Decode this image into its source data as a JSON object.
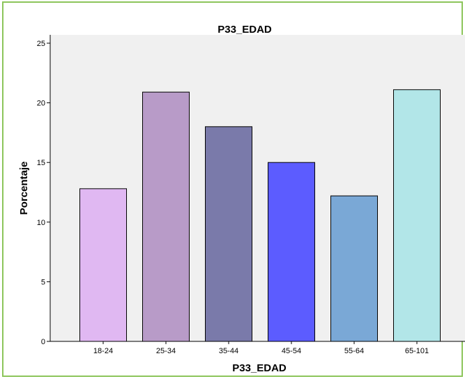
{
  "chart_data": {
    "type": "bar",
    "title": "P33_EDAD",
    "xlabel": "P33_EDAD",
    "ylabel": "Porcentaje",
    "categories": [
      "18-24",
      "25-34",
      "35-44",
      "45-54",
      "55-64",
      "65-101"
    ],
    "values": [
      12.8,
      20.9,
      18.0,
      15.0,
      12.2,
      21.1
    ],
    "bar_colors": [
      "#e0b8f2",
      "#b89bc8",
      "#7a7aaa",
      "#5c5cff",
      "#7aa8d6",
      "#b2e6e8"
    ],
    "ylim": [
      0,
      25.7
    ],
    "yticks": [
      0,
      5,
      10,
      15,
      20,
      25
    ],
    "plot_background": "#f0f0f0",
    "frame_color": "#8cc55a",
    "grid": false,
    "legend": "none"
  }
}
